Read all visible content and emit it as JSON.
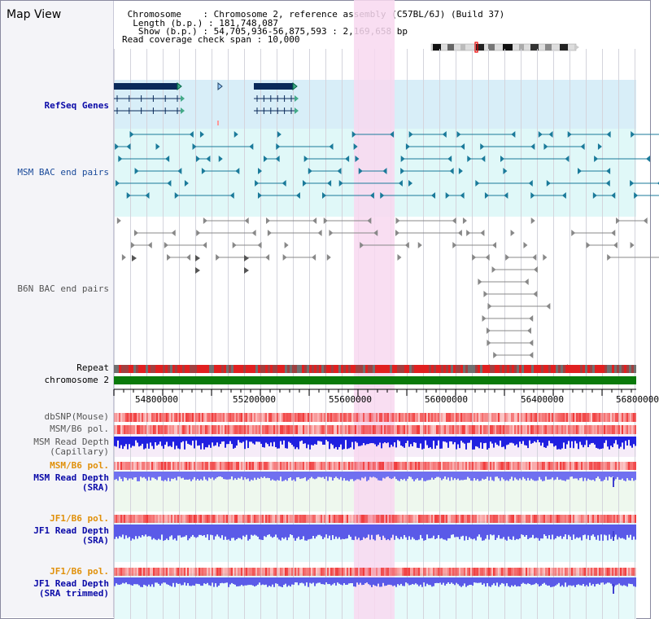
{
  "page": {
    "title": "Map View"
  },
  "info": {
    "line1": " Chromosome    : Chromosome 2, reference assembly (C57BL/6J) (Build 37)",
    "line2": "  Length (b.p.) : 181,748,087",
    "line3": "   Show (b.p.) : 54,705,936-56,875,593 : 2,169,658 bp",
    "line4": "Read coverage check span : 10,000"
  },
  "tracks": {
    "refseq": "RefSeq Genes",
    "msm_bac": "MSM BAC end pairs",
    "b6n_bac": "B6N BAC end pairs",
    "repeat": "Repeat",
    "chromosome": "chromosome 2",
    "dbsnp": "dbSNP(Mouse)",
    "msm_b6_pol": "MSM/B6 pol.",
    "msm_read_depth_cap_1": "MSM Read Depth",
    "msm_read_depth_cap_2": "(Capillary)",
    "msm_b6_pol_sra": "MSM/B6 pol.",
    "msm_read_depth_sra_1": "MSM Read Depth",
    "msm_read_depth_sra_2": "(SRA)",
    "jf1_b6_pol": "JF1/B6 pol.",
    "jf1_read_depth_1": "JF1 Read Depth",
    "jf1_read_depth_2": "(SRA)",
    "jf1_b6_pol_2": "JF1/B6 pol.",
    "jf1_read_depth_t1": "JF1 Read Depth",
    "jf1_read_depth_t2": "(SRA trimmed)"
  },
  "axis": {
    "ticks": [
      "54800000",
      "55200000",
      "55600000",
      "56000000",
      "56400000",
      "56800000"
    ]
  },
  "colors": {
    "highlight": "#f8d8f0",
    "refseq_bg": "#d8eef8",
    "msm_bac_bg": "#e0f8f8",
    "gene": "#0a2a5a",
    "bac_teal": "#1a7a9a",
    "bac_gray": "#888888",
    "repeat_red": "#e02020",
    "chrom_green": "#0a7a0a",
    "snp_red": "#f03030",
    "depth_blue": "#2020e0",
    "depth_light_blue": "#7070f0"
  }
}
